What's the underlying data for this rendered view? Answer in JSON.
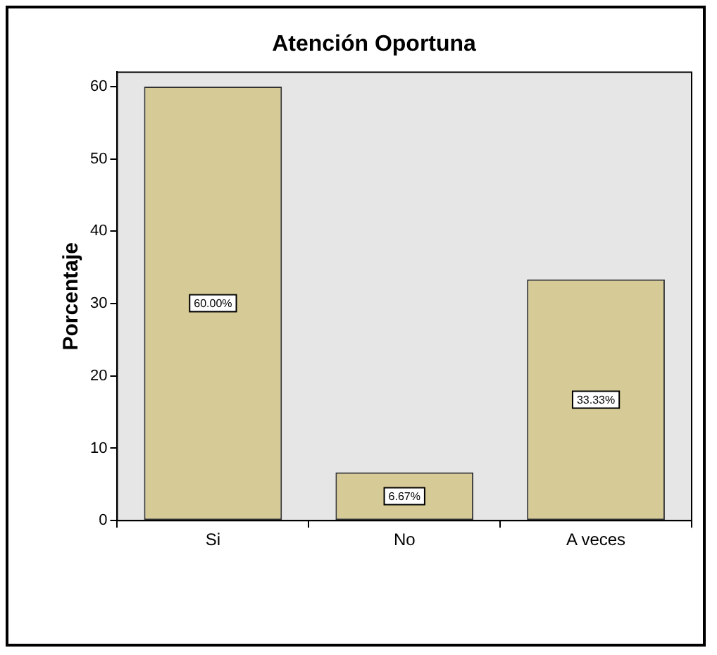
{
  "chart_data": {
    "type": "bar",
    "title": "Atención Oportuna",
    "ylabel": "Porcentaje",
    "categories": [
      "Si",
      "No",
      "A veces"
    ],
    "values": [
      60,
      6.67,
      33.33
    ],
    "value_labels": [
      "60.00%",
      "6.67%",
      "33.33%"
    ],
    "color": "#d6ca96",
    "ylim": [
      0,
      62
    ],
    "yticks": [
      0,
      10,
      20,
      30,
      40,
      50,
      60
    ],
    "grid": false,
    "legend": false
  }
}
